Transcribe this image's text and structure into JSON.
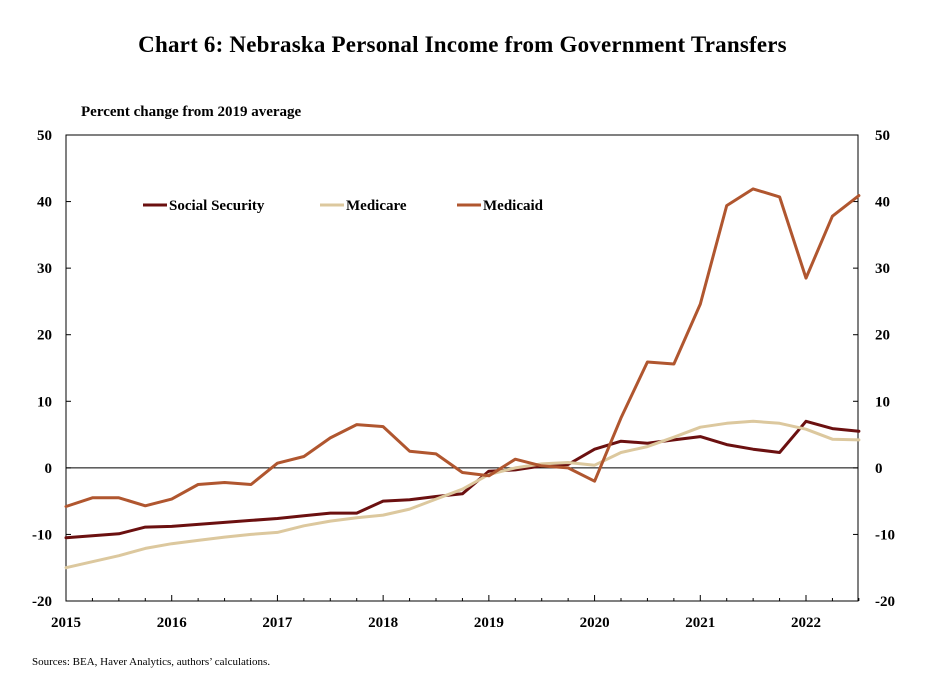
{
  "chart_data": {
    "type": "line",
    "title": "Chart 6: Nebraska Personal Income from Government Transfers",
    "ylabel": "Percent change from 2019 average",
    "xlabel": "",
    "source": "Sources: BEA,  Haver Analytics, authors’ calculations.",
    "ylim": [
      -20,
      50
    ],
    "yticks": [
      50,
      40,
      30,
      20,
      10,
      0,
      -10,
      -20
    ],
    "ytick_labels": [
      "50",
      "40",
      "30",
      "20",
      "10",
      "0",
      "-10",
      "-20"
    ],
    "xtick_labels": [
      "2015",
      "2016",
      "2017",
      "2018",
      "2019",
      "2020",
      "2021",
      "2022"
    ],
    "x": [
      "2015Q1",
      "2015Q2",
      "2015Q3",
      "2015Q4",
      "2016Q1",
      "2016Q2",
      "2016Q3",
      "2016Q4",
      "2017Q1",
      "2017Q2",
      "2017Q3",
      "2017Q4",
      "2018Q1",
      "2018Q2",
      "2018Q3",
      "2018Q4",
      "2019Q1",
      "2019Q2",
      "2019Q3",
      "2019Q4",
      "2020Q1",
      "2020Q2",
      "2020Q3",
      "2020Q4",
      "2021Q1",
      "2021Q2",
      "2021Q3",
      "2021Q4",
      "2022Q1",
      "2022Q2",
      "2022Q3"
    ],
    "grid": false,
    "legend_position": "top-left",
    "series": [
      {
        "name": "Social Security",
        "color": "#6b1010",
        "values": [
          -10.5,
          -10.2,
          -9.9,
          -8.9,
          -8.8,
          -8.5,
          -8.2,
          -7.9,
          -7.6,
          -7.2,
          -6.8,
          -6.8,
          -5.0,
          -4.8,
          -4.3,
          -3.9,
          -0.5,
          -0.3,
          0.3,
          0.5,
          2.8,
          4.0,
          3.7,
          4.2,
          4.7,
          3.5,
          2.8,
          2.3,
          7.0,
          5.9,
          5.5
        ]
      },
      {
        "name": "Medicare",
        "color": "#dcc89e",
        "values": [
          -15.0,
          -14.1,
          -13.2,
          -12.1,
          -11.4,
          -10.9,
          -10.4,
          -10.0,
          -9.7,
          -8.7,
          -8.0,
          -7.5,
          -7.1,
          -6.2,
          -4.7,
          -3.2,
          -1.0,
          0.0,
          0.6,
          0.8,
          0.4,
          2.3,
          3.2,
          4.6,
          6.1,
          6.7,
          7.0,
          6.7,
          5.8,
          4.3,
          4.2
        ]
      },
      {
        "name": "Medicaid",
        "color": "#b0562f",
        "values": [
          -5.8,
          -4.5,
          -4.5,
          -5.7,
          -4.7,
          -2.5,
          -2.2,
          -2.5,
          0.7,
          1.7,
          4.5,
          6.5,
          6.2,
          2.5,
          2.1,
          -0.7,
          -1.2,
          1.3,
          0.3,
          0.0,
          -2.0,
          7.5,
          15.9,
          15.6,
          24.6,
          39.4,
          41.9,
          40.7,
          28.5,
          37.8,
          40.9
        ]
      }
    ]
  }
}
